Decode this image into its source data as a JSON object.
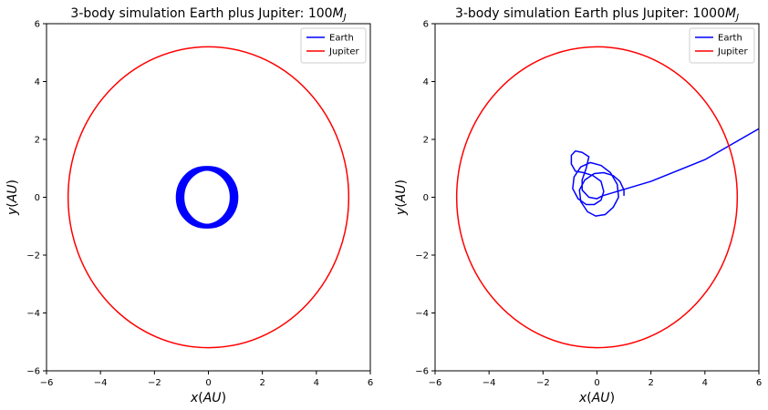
{
  "chart_data": [
    {
      "type": "line",
      "title": {
        "prefix": "3-body simulation Earth plus Jupiter: ",
        "value": "100",
        "symbol": "M",
        "subscript": "J"
      },
      "xlabel": {
        "var": "x",
        "unit": "(AU)"
      },
      "ylabel": {
        "var": "y",
        "unit": "(AU)"
      },
      "xlim": [
        -6,
        6
      ],
      "ylim": [
        -6,
        6
      ],
      "xticks": [
        -6,
        -4,
        -2,
        0,
        2,
        4,
        6
      ],
      "yticks": [
        -6,
        -4,
        -2,
        0,
        2,
        4,
        6
      ],
      "tick_labels": [
        "−6",
        "−4",
        "−2",
        "0",
        "2",
        "4",
        "6"
      ],
      "grid": false,
      "legend_position": "top-right",
      "series": [
        {
          "name": "Earth",
          "color": "#0000ff",
          "kind": "perturbed-orbit",
          "center": [
            -0.05,
            0.0
          ],
          "radius_x": 1.0,
          "radius_y": 1.0,
          "band_width": 0.15,
          "line_width": 5
        },
        {
          "name": "Jupiter",
          "color": "#ff0000",
          "kind": "orbit",
          "center": [
            0.0,
            0.0
          ],
          "radius_x": 5.2,
          "radius_y": 5.2
        }
      ]
    },
    {
      "type": "line",
      "title": {
        "prefix": "3-body simulation Earth plus Jupiter: ",
        "value": "1000",
        "symbol": "M",
        "subscript": "J"
      },
      "xlabel": {
        "var": "x",
        "unit": "(AU)"
      },
      "ylabel": {
        "var": "y",
        "unit": "(AU)"
      },
      "xlim": [
        -6,
        6
      ],
      "ylim": [
        -6,
        6
      ],
      "xticks": [
        -6,
        -4,
        -2,
        0,
        2,
        4,
        6
      ],
      "yticks": [
        -6,
        -4,
        -2,
        0,
        2,
        4,
        6
      ],
      "tick_labels": [
        "−6",
        "−4",
        "−2",
        "0",
        "2",
        "4",
        "6"
      ],
      "grid": false,
      "legend_position": "top-right",
      "series": [
        {
          "name": "Earth",
          "color": "#0000ff",
          "kind": "path",
          "points": [
            [
              1.0,
              0.05
            ],
            [
              1.0,
              0.25
            ],
            [
              0.85,
              0.55
            ],
            [
              0.6,
              0.75
            ],
            [
              0.25,
              0.85
            ],
            [
              -0.1,
              0.82
            ],
            [
              -0.45,
              0.6
            ],
            [
              -0.65,
              0.25
            ],
            [
              -0.6,
              -0.15
            ],
            [
              -0.35,
              -0.5
            ],
            [
              -0.05,
              -0.65
            ],
            [
              0.3,
              -0.6
            ],
            [
              0.6,
              -0.35
            ],
            [
              0.8,
              0.0
            ],
            [
              0.75,
              0.45
            ],
            [
              0.5,
              0.85
            ],
            [
              0.15,
              1.1
            ],
            [
              -0.25,
              1.2
            ],
            [
              -0.6,
              1.05
            ],
            [
              -0.85,
              0.7
            ],
            [
              -0.9,
              0.3
            ],
            [
              -0.7,
              -0.05
            ],
            [
              -0.4,
              -0.25
            ],
            [
              -0.1,
              -0.25
            ],
            [
              0.15,
              -0.1
            ],
            [
              0.25,
              0.2
            ],
            [
              0.15,
              0.55
            ],
            [
              -0.15,
              0.75
            ],
            [
              -0.5,
              0.85
            ],
            [
              -0.8,
              0.9
            ],
            [
              -0.95,
              1.15
            ],
            [
              -0.95,
              1.45
            ],
            [
              -0.8,
              1.6
            ],
            [
              -0.55,
              1.55
            ],
            [
              -0.3,
              1.4
            ],
            [
              -0.4,
              1.0
            ],
            [
              -0.55,
              0.6
            ],
            [
              -0.55,
              0.25
            ],
            [
              -0.3,
              0.0
            ],
            [
              0.0,
              -0.05
            ],
            [
              0.2,
              0.05
            ],
            [
              2.0,
              0.55
            ],
            [
              4.0,
              1.3
            ],
            [
              6.0,
              2.37
            ]
          ]
        },
        {
          "name": "Jupiter",
          "color": "#ff0000",
          "kind": "orbit",
          "center": [
            0.0,
            0.0
          ],
          "radius_x": 5.2,
          "radius_y": 5.2
        }
      ]
    }
  ]
}
